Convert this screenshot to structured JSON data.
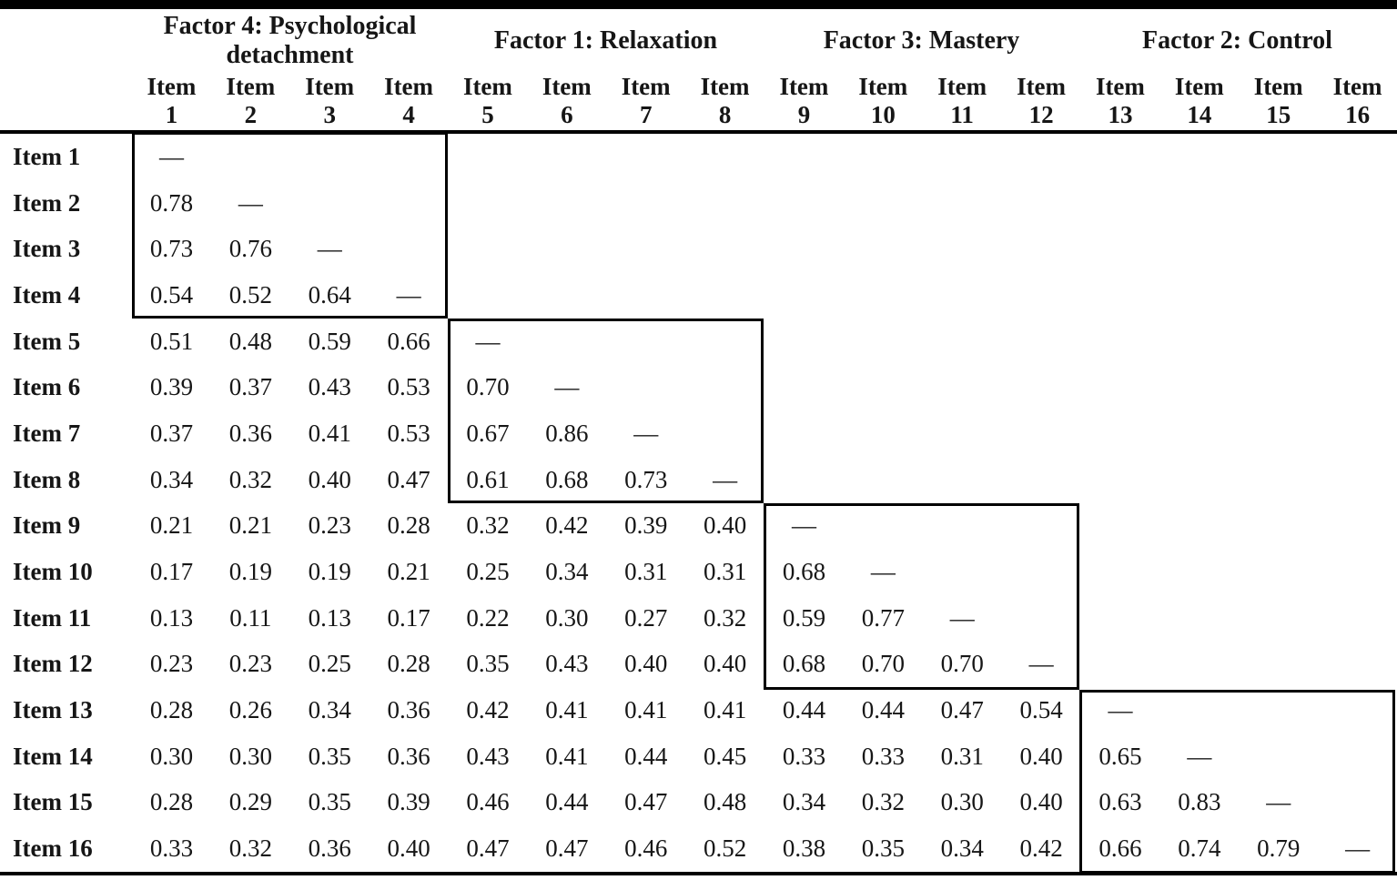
{
  "table": {
    "title_hidden": "",
    "col_word": "Item",
    "col_nums": [
      "1",
      "2",
      "3",
      "4",
      "5",
      "6",
      "7",
      "8",
      "9",
      "10",
      "11",
      "12",
      "13",
      "14",
      "15",
      "16"
    ],
    "factors": [
      {
        "label": "Factor 4: Psychological detachment",
        "columns": "Items 1-4"
      },
      {
        "label": "Factor 1: Relaxation",
        "columns": "Items 5-8"
      },
      {
        "label": "Factor 3: Mastery",
        "columns": "Items 9-12"
      },
      {
        "label": "Factor 2: Control",
        "columns": "Items 13-16"
      }
    ],
    "diagonal_symbol": "—",
    "rows": [
      {
        "label": "Item 1",
        "values": [
          "—"
        ]
      },
      {
        "label": "Item 2",
        "values": [
          "0.78",
          "—"
        ]
      },
      {
        "label": "Item 3",
        "values": [
          "0.73",
          "0.76",
          "—"
        ]
      },
      {
        "label": "Item 4",
        "values": [
          "0.54",
          "0.52",
          "0.64",
          "—"
        ]
      },
      {
        "label": "Item 5",
        "values": [
          "0.51",
          "0.48",
          "0.59",
          "0.66",
          "—"
        ]
      },
      {
        "label": "Item 6",
        "values": [
          "0.39",
          "0.37",
          "0.43",
          "0.53",
          "0.70",
          "—"
        ]
      },
      {
        "label": "Item 7",
        "values": [
          "0.37",
          "0.36",
          "0.41",
          "0.53",
          "0.67",
          "0.86",
          "—"
        ]
      },
      {
        "label": "Item 8",
        "values": [
          "0.34",
          "0.32",
          "0.40",
          "0.47",
          "0.61",
          "0.68",
          "0.73",
          "—"
        ]
      },
      {
        "label": "Item 9",
        "values": [
          "0.21",
          "0.21",
          "0.23",
          "0.28",
          "0.32",
          "0.42",
          "0.39",
          "0.40",
          "—"
        ]
      },
      {
        "label": "Item 10",
        "values": [
          "0.17",
          "0.19",
          "0.19",
          "0.21",
          "0.25",
          "0.34",
          "0.31",
          "0.31",
          "0.68",
          "—"
        ]
      },
      {
        "label": "Item 11",
        "values": [
          "0.13",
          "0.11",
          "0.13",
          "0.17",
          "0.22",
          "0.30",
          "0.27",
          "0.32",
          "0.59",
          "0.77",
          "—"
        ]
      },
      {
        "label": "Item 12",
        "values": [
          "0.23",
          "0.23",
          "0.25",
          "0.28",
          "0.35",
          "0.43",
          "0.40",
          "0.40",
          "0.68",
          "0.70",
          "0.70",
          "—"
        ]
      },
      {
        "label": "Item 13",
        "values": [
          "0.28",
          "0.26",
          "0.34",
          "0.36",
          "0.42",
          "0.41",
          "0.41",
          "0.41",
          "0.44",
          "0.44",
          "0.47",
          "0.54",
          "—"
        ]
      },
      {
        "label": "Item 14",
        "values": [
          "0.30",
          "0.30",
          "0.35",
          "0.36",
          "0.43",
          "0.41",
          "0.44",
          "0.45",
          "0.33",
          "0.33",
          "0.31",
          "0.40",
          "0.65",
          "—"
        ]
      },
      {
        "label": "Item 15",
        "values": [
          "0.28",
          "0.29",
          "0.35",
          "0.39",
          "0.46",
          "0.44",
          "0.47",
          "0.48",
          "0.34",
          "0.32",
          "0.30",
          "0.40",
          "0.63",
          "0.83",
          "—"
        ]
      },
      {
        "label": "Item 16",
        "values": [
          "0.33",
          "0.32",
          "0.36",
          "0.40",
          "0.47",
          "0.47",
          "0.46",
          "0.52",
          "0.38",
          "0.35",
          "0.34",
          "0.42",
          "0.66",
          "0.74",
          "0.79",
          "—"
        ]
      }
    ],
    "colors": {
      "line": "#000000",
      "text": "#161616",
      "background": "#ffffff"
    }
  }
}
